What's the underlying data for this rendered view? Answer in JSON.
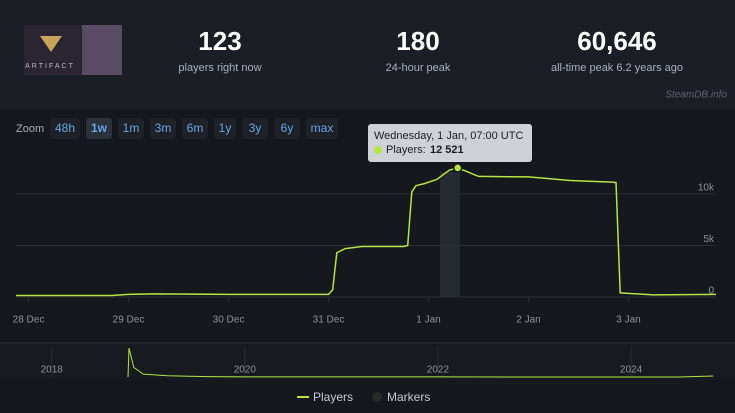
{
  "header": {
    "logo_text": "ARTIFACT",
    "stats": [
      {
        "value": "123",
        "label": "players right now"
      },
      {
        "value": "180",
        "label": "24-hour peak"
      },
      {
        "value": "60,646",
        "label": "all-time peak 6.2 years ago"
      }
    ],
    "watermark": "SteamDB.info"
  },
  "zoom": {
    "label": "Zoom",
    "buttons": [
      "48h",
      "1w",
      "1m",
      "3m",
      "6m",
      "1y",
      "3y",
      "6y",
      "max"
    ],
    "active": "1w"
  },
  "tooltip": {
    "title": "Wednesday, 1 Jan, 07:00 UTC",
    "series": "Players:",
    "value": "12 521"
  },
  "markers_label": "Markers",
  "chart_data": [
    {
      "type": "line",
      "x": [
        -3,
        20,
        24,
        30,
        48,
        72,
        73,
        74,
        76,
        80,
        90,
        91,
        92,
        93,
        95,
        98,
        101,
        103,
        105,
        108,
        120,
        130,
        140,
        141,
        142,
        150,
        165
      ],
      "series": [
        {
          "name": "Players",
          "color": "#b5e445",
          "values": [
            150,
            150,
            250,
            300,
            250,
            250,
            700,
            4300,
            4700,
            4900,
            4900,
            5000,
            10200,
            10800,
            11000,
            11400,
            12300,
            12521,
            12200,
            11700,
            11650,
            11300,
            11150,
            11100,
            400,
            200,
            250
          ]
        }
      ],
      "xlim": [
        -3,
        165
      ],
      "xticks": [
        {
          "value": 0,
          "label": "28 Dec"
        },
        {
          "value": 24,
          "label": "29 Dec"
        },
        {
          "value": 48,
          "label": "30 Dec"
        },
        {
          "value": 72,
          "label": "31 Dec"
        },
        {
          "value": 96,
          "label": "1 Jan"
        },
        {
          "value": 120,
          "label": "2 Jan"
        },
        {
          "value": 144,
          "label": "3 Jan"
        }
      ],
      "ylim": [
        0,
        13000
      ],
      "yticks": [
        0,
        {
          "value": 5000,
          "label": "5k"
        },
        {
          "value": 10000,
          "label": "10k"
        }
      ],
      "grid": true
    },
    {
      "type": "line",
      "x": [
        2018.79,
        2018.8,
        2018.85,
        2018.95,
        2019.2,
        2019.6,
        2020,
        2021,
        2022,
        2023,
        2024.5,
        2024.85
      ],
      "series": [
        {
          "name": "Players",
          "color": "#b5e445",
          "values": [
            0,
            60646,
            20000,
            6000,
            2500,
            800,
            300,
            150,
            200,
            100,
            100,
            2000
          ]
        }
      ],
      "xlim": [
        2017.63,
        2024.88
      ],
      "xticks": [
        2018,
        2020,
        2022,
        2024
      ],
      "ylim": [
        0,
        65000
      ]
    }
  ]
}
